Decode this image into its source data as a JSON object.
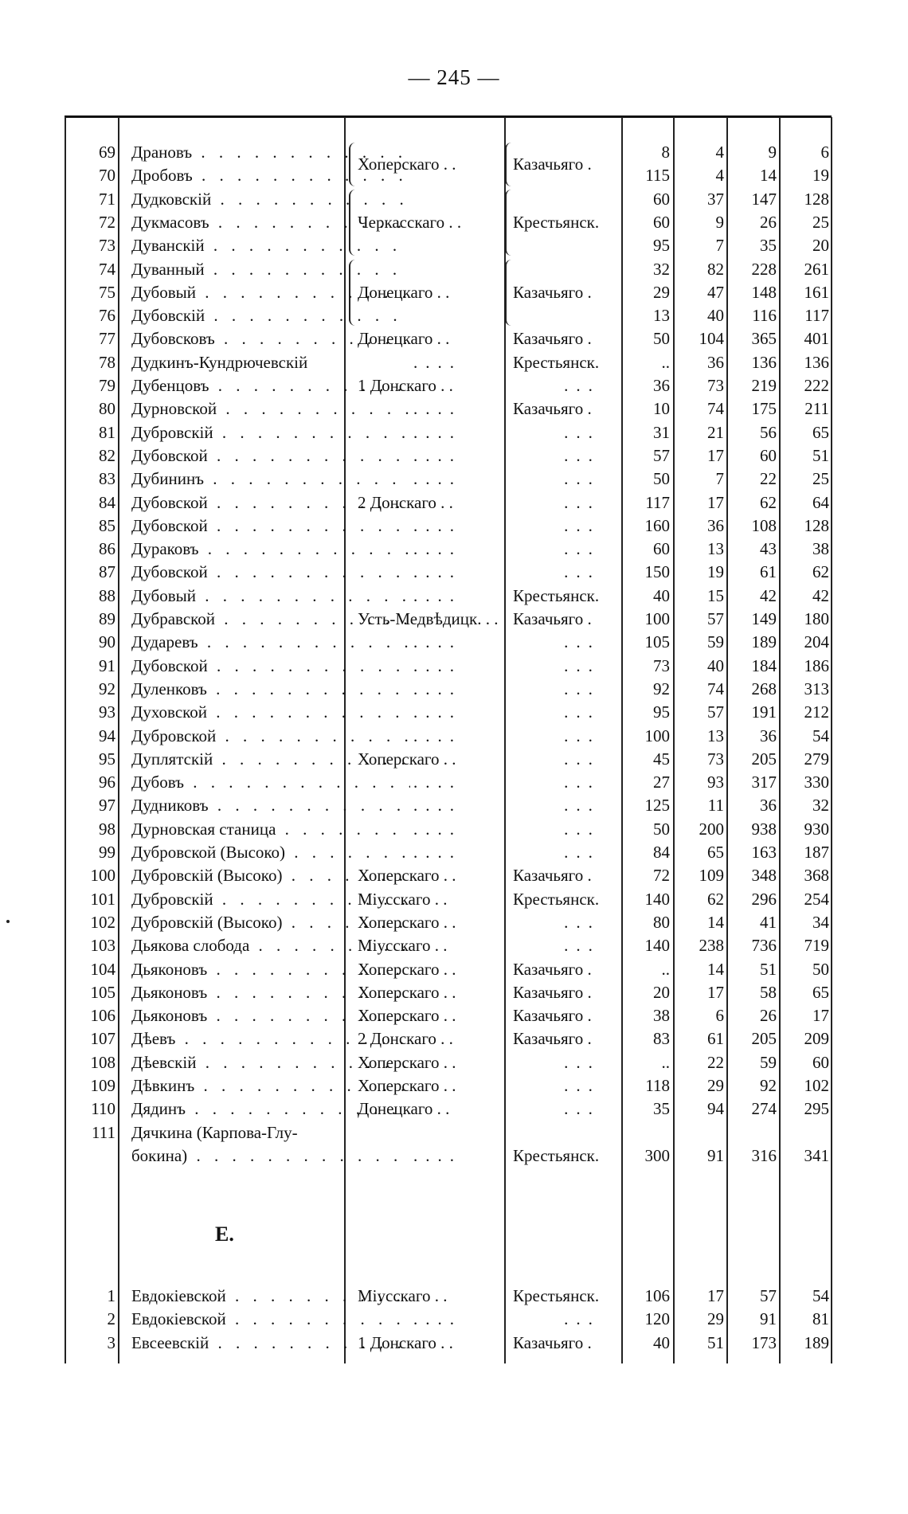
{
  "page_number": "— 245 —",
  "section_heading": "Е.",
  "rows_d": [
    {
      "num": "69",
      "name": "Драновъ",
      "district": "Хоперскаго",
      "district_span": 2,
      "type": "Казачьяго",
      "type_span": 2,
      "v": [
        "8",
        "4",
        "9",
        "6"
      ]
    },
    {
      "num": "70",
      "name": "Дробовъ",
      "district": "",
      "type": "",
      "v": [
        "115",
        "4",
        "14",
        "19"
      ]
    },
    {
      "num": "71",
      "name": "Дудковскій",
      "district": "Черкасскаго",
      "district_span": 3,
      "type": "Крестьянск.",
      "type_span": 3,
      "v": [
        "60",
        "37",
        "147",
        "128"
      ]
    },
    {
      "num": "72",
      "name": "Дукмасовъ",
      "district": "",
      "type": "",
      "v": [
        "60",
        "9",
        "26",
        "25"
      ]
    },
    {
      "num": "73",
      "name": "Дуванскій",
      "district": "",
      "type": "",
      "v": [
        "95",
        "7",
        "35",
        "20"
      ]
    },
    {
      "num": "74",
      "name": "Дуванный",
      "district": "Донецкаго",
      "district_span": 3,
      "type": "Казачьяго",
      "type_span": 3,
      "v": [
        "32",
        "82",
        "228",
        "261"
      ]
    },
    {
      "num": "75",
      "name": "Дубовый",
      "district": "",
      "type": "",
      "v": [
        "29",
        "47",
        "148",
        "161"
      ]
    },
    {
      "num": "76",
      "name": "Дубовскій",
      "district": "",
      "type": "",
      "v": [
        "13",
        "40",
        "116",
        "117"
      ]
    },
    {
      "num": "77",
      "name": "Дубовсковъ",
      "district": "Донецкаго",
      "type": "Казачьяго",
      "v": [
        "50",
        "104",
        "365",
        "401"
      ]
    },
    {
      "num": "78",
      "name": "Дудкинъ-Кундрючевскій",
      "noLead": true,
      "district": "....",
      "type": "Крестьянск.",
      "v": [
        "..",
        "36",
        "136",
        "136"
      ]
    },
    {
      "num": "79",
      "name": "Дубенцовъ",
      "district": "1 Донскаго",
      "type": "...",
      "v": [
        "36",
        "73",
        "219",
        "222"
      ]
    },
    {
      "num": "80",
      "name": "Дурновской",
      "district": "....",
      "type": "Казачьяго",
      "v": [
        "10",
        "74",
        "175",
        "211"
      ]
    },
    {
      "num": "81",
      "name": "Дубровскій",
      "district": "....",
      "type": "...",
      "v": [
        "31",
        "21",
        "56",
        "65"
      ]
    },
    {
      "num": "82",
      "name": "Дубовской",
      "district": "....",
      "type": "...",
      "v": [
        "57",
        "17",
        "60",
        "51"
      ]
    },
    {
      "num": "83",
      "name": "Дубининъ",
      "district": "....",
      "type": "...",
      "v": [
        "50",
        "7",
        "22",
        "25"
      ]
    },
    {
      "num": "84",
      "name": "Дубовской",
      "district": "2 Донскаго",
      "type": "...",
      "v": [
        "117",
        "17",
        "62",
        "64"
      ]
    },
    {
      "num": "85",
      "name": "Дубовской",
      "district": "....",
      "type": "...",
      "v": [
        "160",
        "36",
        "108",
        "128"
      ]
    },
    {
      "num": "86",
      "name": "Дураковъ",
      "district": "....",
      "type": "...",
      "v": [
        "60",
        "13",
        "43",
        "38"
      ]
    },
    {
      "num": "87",
      "name": "Дубовской",
      "district": "....",
      "type": "...",
      "v": [
        "150",
        "19",
        "61",
        "62"
      ]
    },
    {
      "num": "88",
      "name": "Дубовый",
      "district": "....",
      "type": "Крестьянск.",
      "v": [
        "40",
        "15",
        "42",
        "42"
      ]
    },
    {
      "num": "89",
      "name": "Дубравской",
      "district": "Усть-Медвѣдицк.",
      "type": "Казачьяго",
      "v": [
        "100",
        "57",
        "149",
        "180"
      ]
    },
    {
      "num": "90",
      "name": "Дударевъ",
      "district": "....",
      "type": "...",
      "v": [
        "105",
        "59",
        "189",
        "204"
      ]
    },
    {
      "num": "91",
      "name": "Дубовской",
      "district": "....",
      "type": "...",
      "v": [
        "73",
        "40",
        "184",
        "186"
      ]
    },
    {
      "num": "92",
      "name": "Дуленковъ",
      "district": "....",
      "type": "...",
      "v": [
        "92",
        "74",
        "268",
        "313"
      ]
    },
    {
      "num": "93",
      "name": "Духовской",
      "district": "....",
      "type": "...",
      "v": [
        "95",
        "57",
        "191",
        "212"
      ]
    },
    {
      "num": "94",
      "name": "Дубровской",
      "district": "....",
      "type": "...",
      "v": [
        "100",
        "13",
        "36",
        "54"
      ]
    },
    {
      "num": "95",
      "name": "Дуплятскій",
      "district": "Хоперскаго",
      "type": "...",
      "v": [
        "45",
        "73",
        "205",
        "279"
      ]
    },
    {
      "num": "96",
      "name": "Дубовъ",
      "district": "....",
      "type": "...",
      "v": [
        "27",
        "93",
        "317",
        "330"
      ]
    },
    {
      "num": "97",
      "name": "Дудниковъ",
      "district": "....",
      "type": "...",
      "v": [
        "125",
        "11",
        "36",
        "32"
      ]
    },
    {
      "num": "98",
      "name": "Дурновская станица",
      "district": "....",
      "type": "...",
      "v": [
        "50",
        "200",
        "938",
        "930"
      ]
    },
    {
      "num": "99",
      "name": "Дубровской (Высоко)",
      "district": "....",
      "type": "...",
      "v": [
        "84",
        "65",
        "163",
        "187"
      ]
    },
    {
      "num": "100",
      "name": "Дубровскій (Высоко)",
      "district": "Хоперскаго",
      "type": "Казачьяго",
      "v": [
        "72",
        "109",
        "348",
        "368"
      ]
    },
    {
      "num": "101",
      "name": "Дубровскій",
      "district": "Міусскаго",
      "type": "Крестьянск.",
      "v": [
        "140",
        "62",
        "296",
        "254"
      ]
    },
    {
      "num": "102",
      "name": "Дубровскій (Высоко)",
      "district": "Хоперскаго",
      "type": "...",
      "v": [
        "80",
        "14",
        "41",
        "34"
      ]
    },
    {
      "num": "103",
      "name": "Дьякова слобода",
      "district": "Міусскаго",
      "type": "...",
      "v": [
        "140",
        "238",
        "736",
        "719"
      ]
    },
    {
      "num": "104",
      "name": "Дьяконовъ",
      "district": "Хоперскаго",
      "type": "Казачьяго",
      "v": [
        "..",
        "14",
        "51",
        "50"
      ]
    },
    {
      "num": "105",
      "name": "Дьяконовъ",
      "district": "Хоперскаго",
      "type": "Казачьяго",
      "v": [
        "20",
        "17",
        "58",
        "65"
      ]
    },
    {
      "num": "106",
      "name": "Дьяконовъ",
      "district": "Хоперскаго",
      "type": "Казачьяго",
      "v": [
        "38",
        "6",
        "26",
        "17"
      ]
    },
    {
      "num": "107",
      "name": "Дѣевъ",
      "district": "2 Донскаго",
      "type": "Казачьяго",
      "v": [
        "83",
        "61",
        "205",
        "209"
      ]
    },
    {
      "num": "108",
      "name": "Дѣевскій",
      "district": "Хоперскаго",
      "type": "...",
      "v": [
        "..",
        "22",
        "59",
        "60"
      ]
    },
    {
      "num": "109",
      "name": "Дѣвкинъ",
      "district": "Хоперскаго",
      "type": "...",
      "v": [
        "118",
        "29",
        "92",
        "102"
      ]
    },
    {
      "num": "110",
      "name": "Дядинъ",
      "district": "Донецкаго",
      "type": "...",
      "v": [
        "35",
        "94",
        "274",
        "295"
      ]
    },
    {
      "num": "111",
      "name": "Дячкина (Карпова-Глу-",
      "noLead": true,
      "district": "",
      "type": "",
      "v": [
        "",
        "",
        "",
        ""
      ]
    },
    {
      "num": "",
      "name": "бокина)",
      "district": "....",
      "type": "Крестьянск.",
      "v": [
        "300",
        "91",
        "316",
        "341"
      ]
    }
  ],
  "rows_e": [
    {
      "num": "1",
      "name": "Евдокіевской",
      "district": "Міусскаго",
      "type": "Крестьянск.",
      "v": [
        "106",
        "17",
        "57",
        "54"
      ]
    },
    {
      "num": "2",
      "name": "Евдокіевской",
      "district": "....",
      "type": "...",
      "v": [
        "120",
        "29",
        "91",
        "81"
      ]
    },
    {
      "num": "3",
      "name": "Евсеевскій",
      "district": "1 Донскаго",
      "type": "Казачьяго",
      "v": [
        "40",
        "51",
        "173",
        "189"
      ]
    }
  ]
}
